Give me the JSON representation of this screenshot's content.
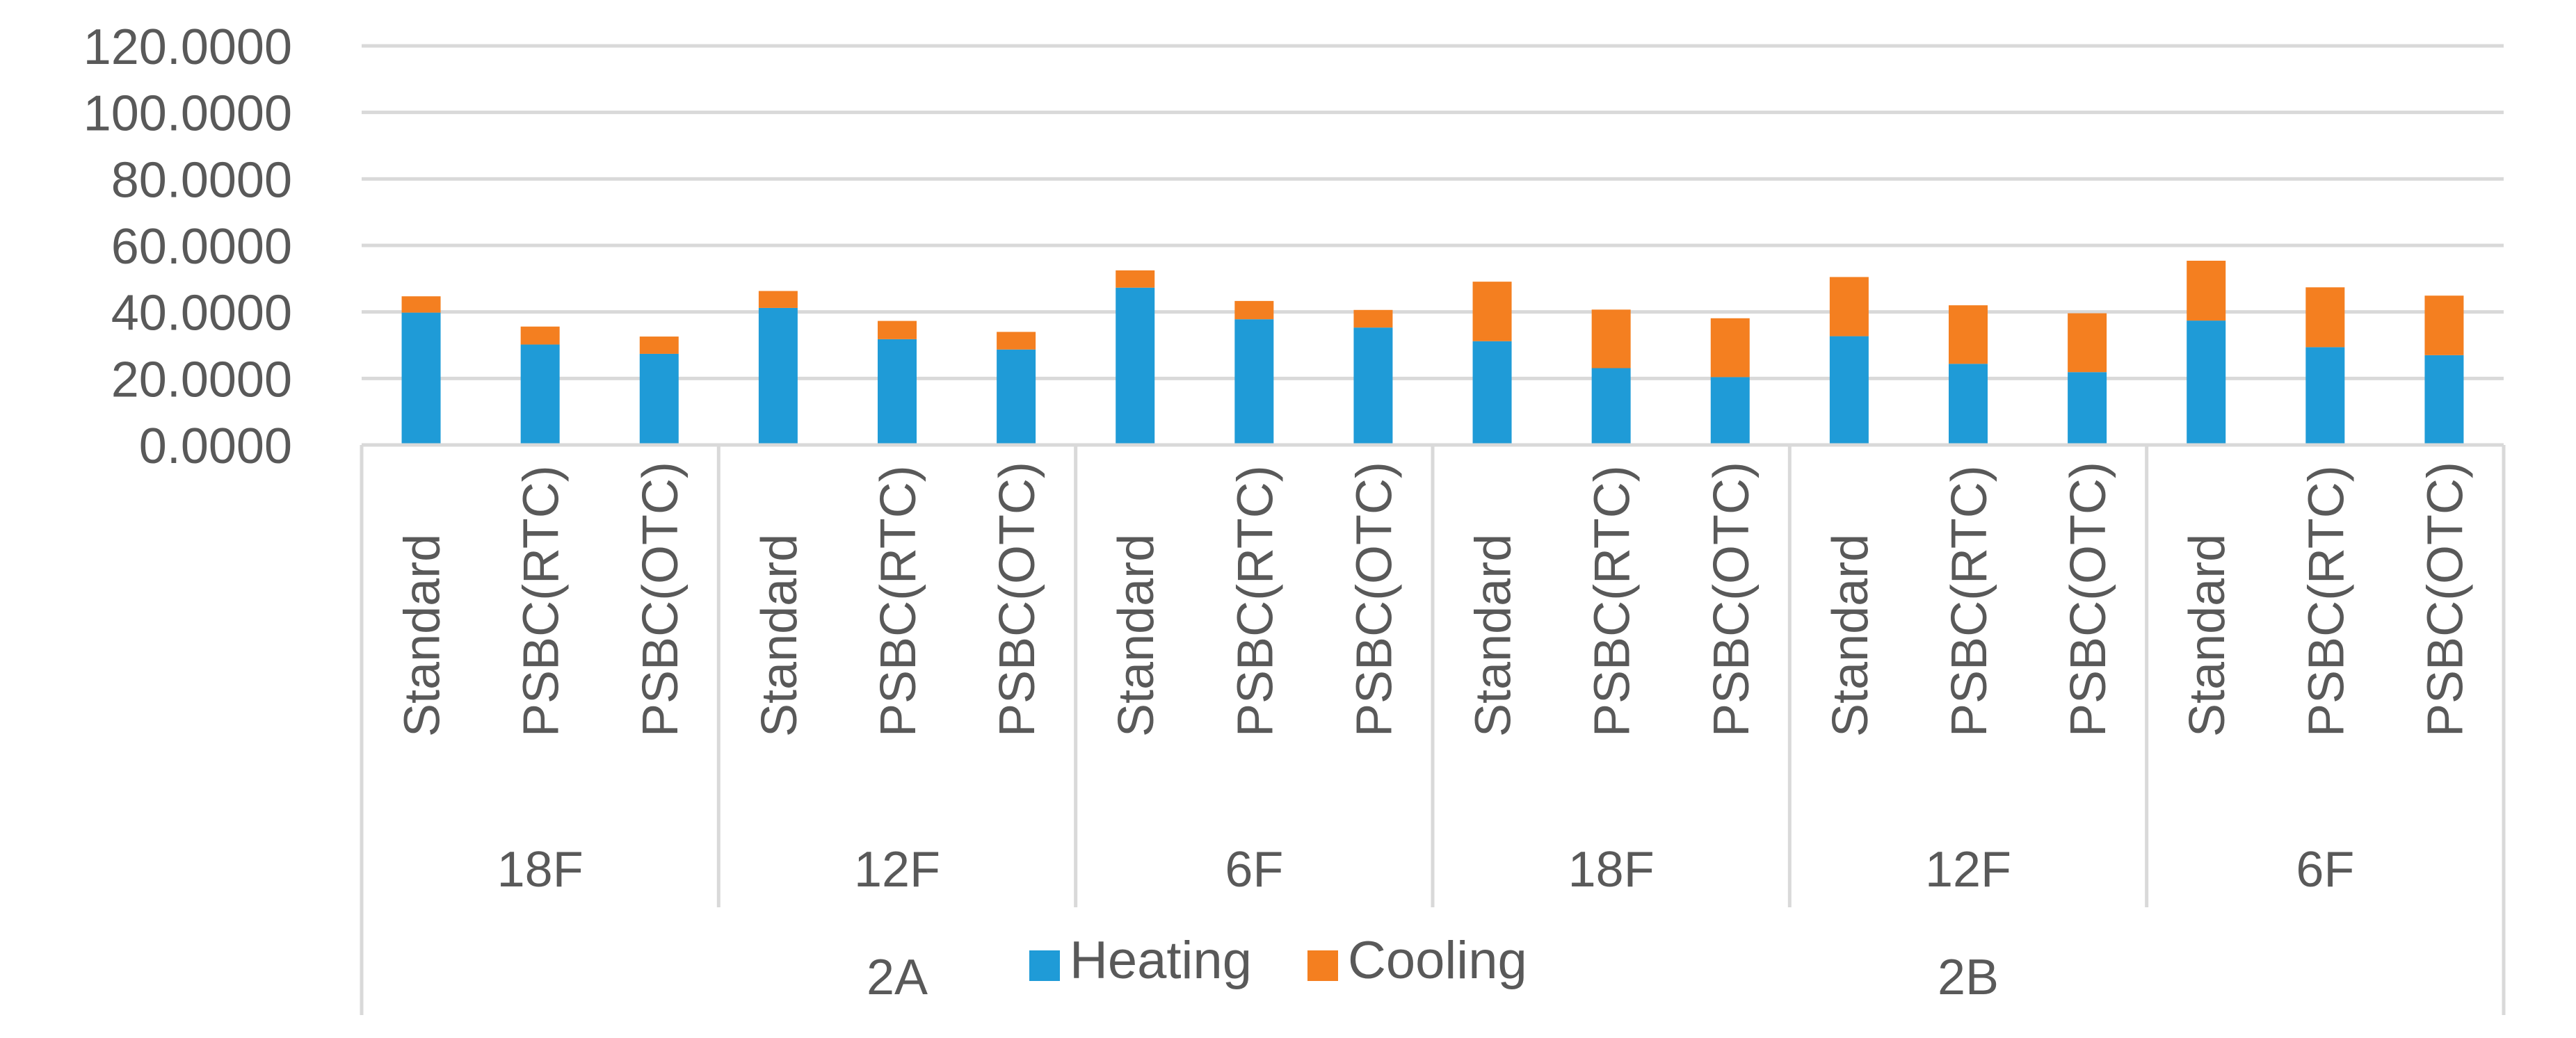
{
  "chart_data": {
    "type": "bar",
    "stacked": true,
    "title": "",
    "xlabel": "",
    "ylabel": "",
    "ylim": [
      0,
      120
    ],
    "yticks": [
      "0.0000",
      "20.0000",
      "40.0000",
      "60.0000",
      "80.0000",
      "100.0000",
      "120.0000"
    ],
    "grid": true,
    "legend_position": "bottom-center",
    "categories": [
      "Standard",
      "PSBC(RTC)",
      "PSBC(OTC)",
      "Standard",
      "PSBC(RTC)",
      "PSBC(OTC)",
      "Standard",
      "PSBC(RTC)",
      "PSBC(OTC)",
      "Standard",
      "PSBC(RTC)",
      "PSBC(OTC)",
      "Standard",
      "PSBC(RTC)",
      "PSBC(OTC)",
      "Standard",
      "PSBC(RTC)",
      "PSBC(OTC)"
    ],
    "groups_level1": [
      {
        "label": "18F",
        "size": 3
      },
      {
        "label": "12F",
        "size": 3
      },
      {
        "label": "6F",
        "size": 3
      },
      {
        "label": "18F",
        "size": 3
      },
      {
        "label": "12F",
        "size": 3
      },
      {
        "label": "6F",
        "size": 3
      }
    ],
    "groups_level2": [
      {
        "label": "2A",
        "size": 9
      },
      {
        "label": "2B",
        "size": 9
      }
    ],
    "series": [
      {
        "name": "Heating",
        "color": "#1f9bd7",
        "values": [
          39.8,
          30.2,
          27.4,
          41.2,
          31.8,
          28.7,
          47.3,
          37.8,
          35.3,
          31.2,
          23.1,
          20.4,
          32.7,
          24.4,
          21.9,
          37.4,
          29.4,
          27.0
        ]
      },
      {
        "name": "Cooling",
        "color": "#f47f20",
        "values": [
          4.9,
          5.4,
          5.2,
          5.1,
          5.5,
          5.3,
          5.2,
          5.5,
          5.3,
          17.9,
          17.6,
          17.7,
          17.8,
          17.6,
          17.7,
          18.0,
          18.0,
          17.9
        ]
      }
    ]
  }
}
